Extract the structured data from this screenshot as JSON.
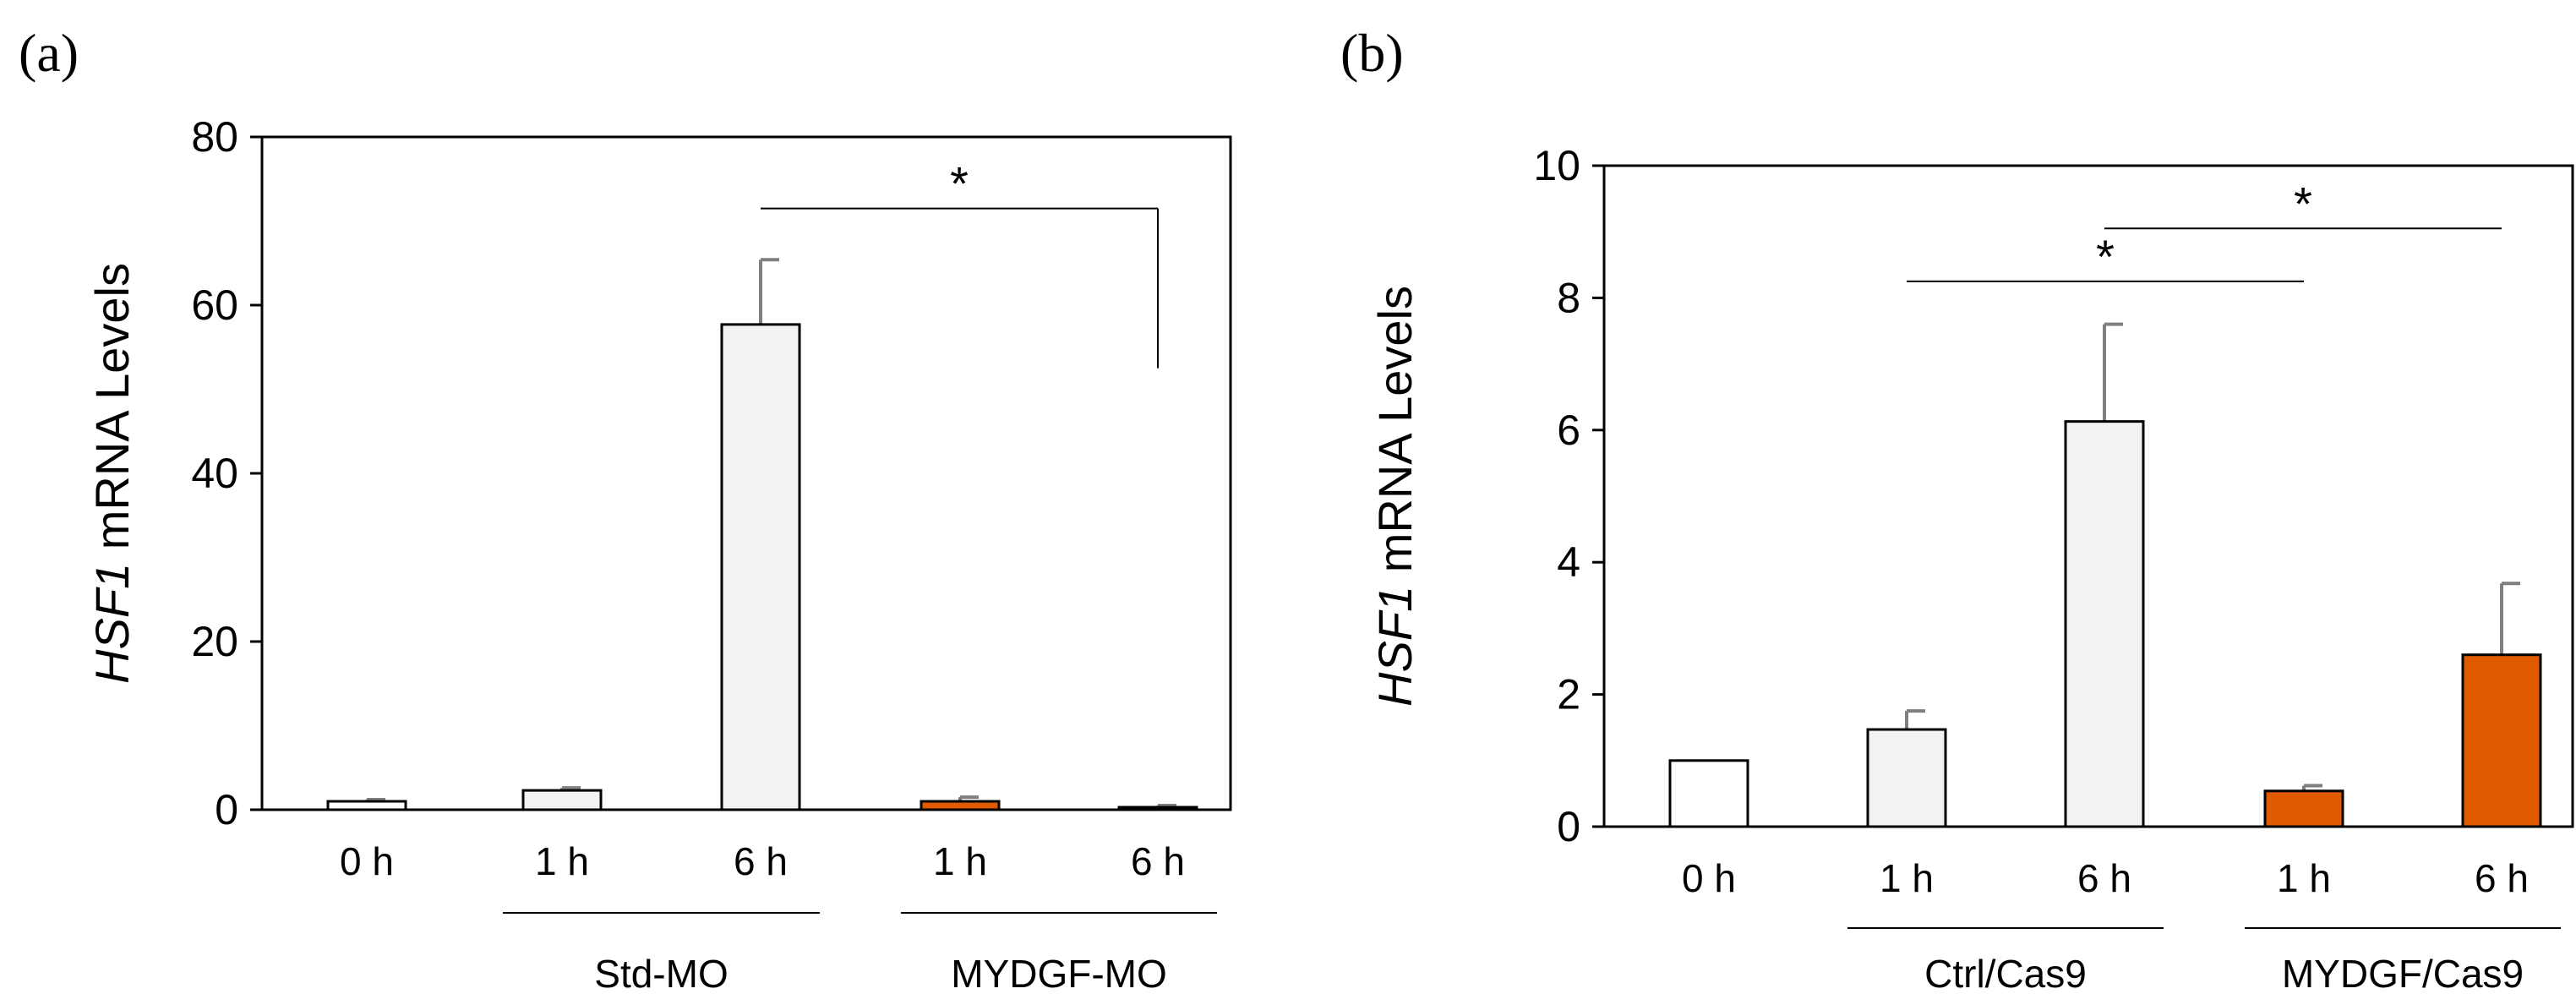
{
  "chart_data": [
    {
      "type": "bar",
      "panel_label": "(a)",
      "ylabel_italic": "HSF1",
      "ylabel_rest": " mRNA Levels",
      "ylim": [
        0,
        80
      ],
      "yticks": [
        0,
        20,
        40,
        60,
        80
      ],
      "grid": false,
      "categories": [
        "0 h",
        "1 h",
        "6 h",
        "1 h",
        "6 h"
      ],
      "values": [
        1.0,
        2.3,
        57.7,
        1.0,
        0.3
      ],
      "errors": [
        0.2,
        0.3,
        7.7,
        0.5,
        0.2
      ],
      "bar_colors": [
        "#ffffff",
        "#f2f2f2",
        "#f2f2f2",
        "#e05a00",
        "#f2f2f2"
      ],
      "groups": [
        {
          "label": "Std-MO",
          "from": 1,
          "to": 2
        },
        {
          "label": "MYDGF-MO",
          "from": 3,
          "to": 4
        }
      ],
      "significance": [
        {
          "from": 2,
          "to": 4,
          "level": 71.5,
          "drop_to": 52.5,
          "label": "*"
        }
      ]
    },
    {
      "type": "bar",
      "panel_label": "(b)",
      "ylabel_italic": "HSF1",
      "ylabel_rest": " mRNA Levels",
      "ylim": [
        0,
        10
      ],
      "yticks": [
        0,
        2,
        4,
        6,
        8,
        10
      ],
      "grid": false,
      "categories": [
        "0 h",
        "1 h",
        "6 h",
        "1 h",
        "6 h"
      ],
      "values": [
        1.0,
        1.47,
        6.13,
        0.54,
        2.6
      ],
      "errors": [
        0.0,
        0.28,
        1.47,
        0.08,
        1.08
      ],
      "bar_colors": [
        "#ffffff",
        "#f2f2f2",
        "#f2f2f2",
        "#e05a00",
        "#e05a00"
      ],
      "groups": [
        {
          "label": "Ctrl/Cas9",
          "from": 1,
          "to": 2
        },
        {
          "label": "MYDGF/Cas9",
          "from": 3,
          "to": 4
        }
      ],
      "significance": [
        {
          "from": 1,
          "to": 3,
          "level": 8.25,
          "label": "*"
        },
        {
          "from": 2,
          "to": 4,
          "level": 9.05,
          "label": "*"
        }
      ]
    }
  ]
}
